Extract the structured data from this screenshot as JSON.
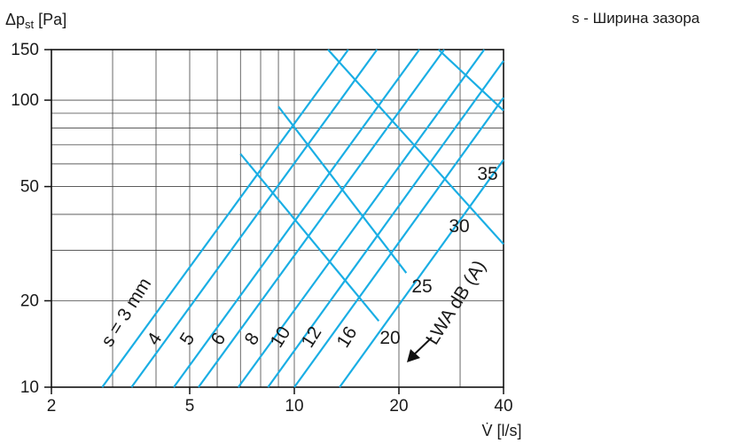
{
  "chart_data": {
    "type": "line",
    "x_scale": "log",
    "y_scale": "log",
    "xlim": [
      2,
      40
    ],
    "ylim": [
      10,
      150
    ],
    "x_ticks": [
      2,
      5,
      10,
      20,
      40
    ],
    "y_ticks": [
      10,
      20,
      50,
      100,
      150
    ],
    "x_minor_gridlines": [
      3,
      4,
      6,
      7,
      8,
      9,
      30
    ],
    "y_minor_gridlines": [
      30,
      40,
      60,
      70,
      80,
      90
    ],
    "grid": true,
    "line_color": "#1aaee4",
    "ylabel_symbol": "Δp",
    "ylabel_subscript": "st",
    "ylabel_unit": "[Pa]",
    "xlabel": "V̇ [l/s]",
    "legend_note": "s - Ширина зазора",
    "gap_series": [
      {
        "label": "s = 3 mm",
        "points": [
          [
            2.8,
            10
          ],
          [
            14.3,
            150
          ]
        ]
      },
      {
        "label": "4",
        "points": [
          [
            3.4,
            10
          ],
          [
            17.3,
            150
          ]
        ]
      },
      {
        "label": "5",
        "points": [
          [
            4.5,
            10
          ],
          [
            22.9,
            150
          ]
        ]
      },
      {
        "label": "6",
        "points": [
          [
            5.3,
            10
          ],
          [
            27.0,
            150
          ]
        ]
      },
      {
        "label": "8",
        "points": [
          [
            6.9,
            10
          ],
          [
            35.2,
            150
          ]
        ]
      },
      {
        "label": "10",
        "points": [
          [
            8.4,
            10
          ],
          [
            40.0,
            137
          ]
        ]
      },
      {
        "label": "12",
        "points": [
          [
            10.0,
            10
          ],
          [
            40.0,
            102
          ]
        ]
      },
      {
        "label": "16",
        "points": [
          [
            13.5,
            10
          ],
          [
            40.0,
            62
          ]
        ]
      }
    ],
    "noise_series": [
      {
        "label": "20",
        "points": [
          [
            7.0,
            65
          ],
          [
            17.5,
            17
          ]
        ]
      },
      {
        "label": "25",
        "points": [
          [
            9.0,
            95
          ],
          [
            21.0,
            25
          ]
        ]
      },
      {
        "label": "30",
        "points": [
          [
            12.5,
            150
          ],
          [
            40.0,
            31.5
          ]
        ]
      },
      {
        "label": "35",
        "points": [
          [
            26.0,
            150
          ],
          [
            40.0,
            92
          ]
        ]
      }
    ],
    "noise_axis_label": "LWA dB (A)"
  }
}
